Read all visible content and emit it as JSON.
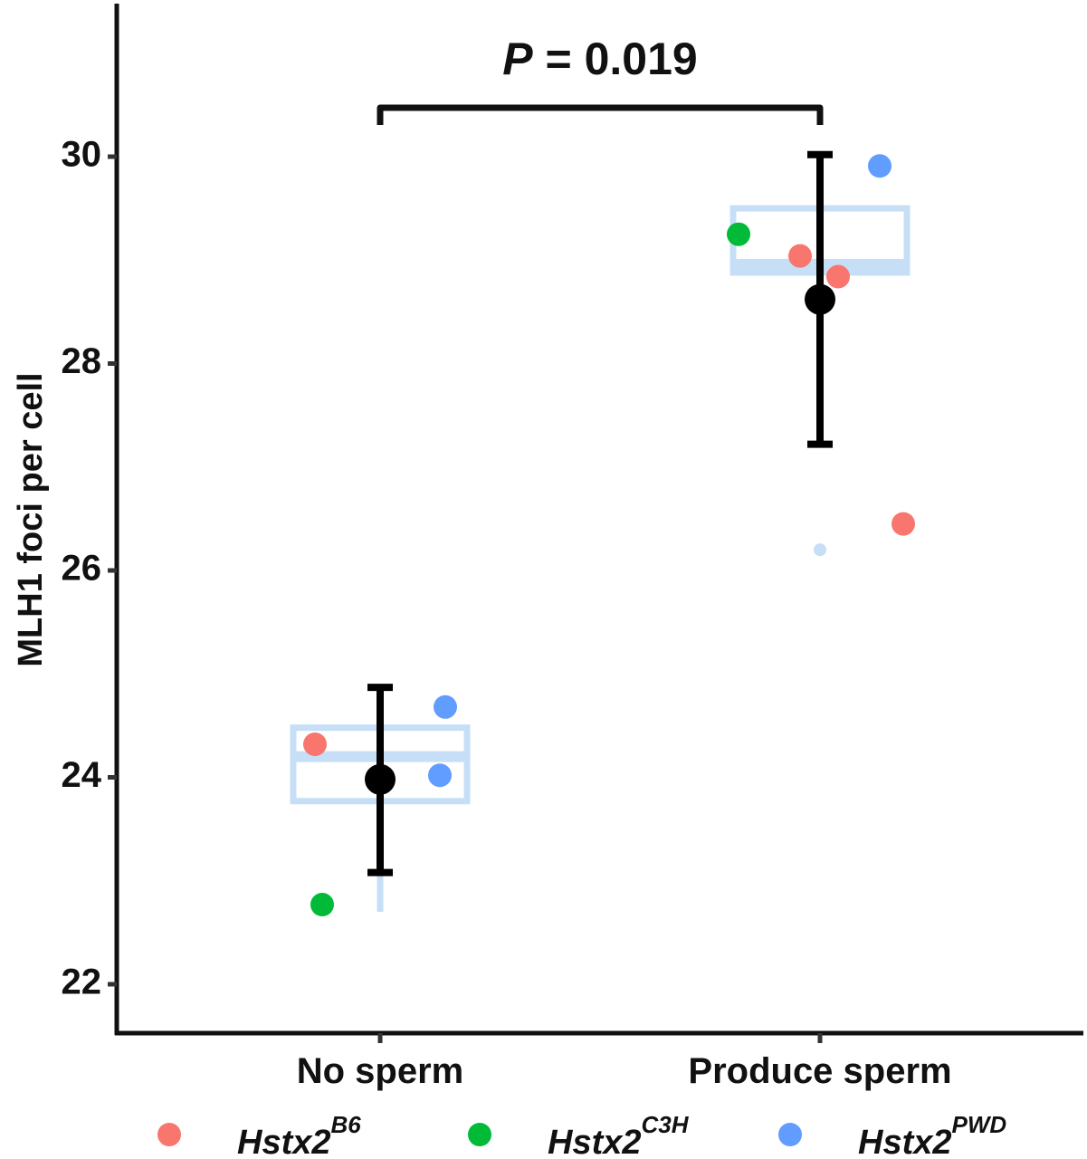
{
  "chart_data": {
    "type": "scatter",
    "title": "",
    "xlabel": "",
    "ylabel": "MLH1 foci per cell",
    "categories": [
      "No sperm",
      "Produce sperm"
    ],
    "ylim": [
      21.6,
      31.4
    ],
    "yticks": [
      22,
      24,
      26,
      28,
      30
    ],
    "grid": false,
    "legend_position": "bottom",
    "colors": {
      "B6": "#f8766d",
      "C3H": "#00ba38",
      "PWD": "#619cff",
      "box": "#c6dff7",
      "summary": "#000000"
    },
    "legend": [
      {
        "key": "B6",
        "base": "Hstx2",
        "sup": "B6"
      },
      {
        "key": "C3H",
        "base": "Hstx2",
        "sup": "C3H"
      },
      {
        "key": "PWD",
        "base": "Hstx2",
        "sup": "PWD"
      }
    ],
    "points": [
      {
        "category": "No sperm",
        "group": "B6",
        "y": 24.32
      },
      {
        "category": "No sperm",
        "group": "C3H",
        "y": 22.77
      },
      {
        "category": "No sperm",
        "group": "PWD",
        "y": 24.68
      },
      {
        "category": "No sperm",
        "group": "PWD",
        "y": 24.02
      },
      {
        "category": "Produce sperm",
        "group": "C3H",
        "y": 29.25
      },
      {
        "category": "Produce sperm",
        "group": "B6",
        "y": 29.04
      },
      {
        "category": "Produce sperm",
        "group": "B6",
        "y": 28.84
      },
      {
        "category": "Produce sperm",
        "group": "PWD",
        "y": 29.91
      },
      {
        "category": "Produce sperm",
        "group": "B6",
        "y": 26.45
      }
    ],
    "boxes": [
      {
        "category": "No sperm",
        "q1": 23.77,
        "median": 24.2,
        "q3": 24.48,
        "whisker_low": 22.7,
        "whisker_high": 24.48,
        "outliers": []
      },
      {
        "category": "Produce sperm",
        "q1": 28.88,
        "median": 28.96,
        "q3": 29.5,
        "whisker_low": 28.88,
        "whisker_high": 29.5,
        "outliers": [
          26.2
        ]
      }
    ],
    "summary": [
      {
        "category": "No sperm",
        "mean": 23.98,
        "lower": 23.08,
        "upper": 24.87
      },
      {
        "category": "Produce sperm",
        "mean": 28.62,
        "lower": 27.22,
        "upper": 30.02
      }
    ],
    "annotation": {
      "between": [
        "No sperm",
        "Produce sperm"
      ],
      "italic_part": "P",
      "rest": " = 0.019"
    }
  }
}
